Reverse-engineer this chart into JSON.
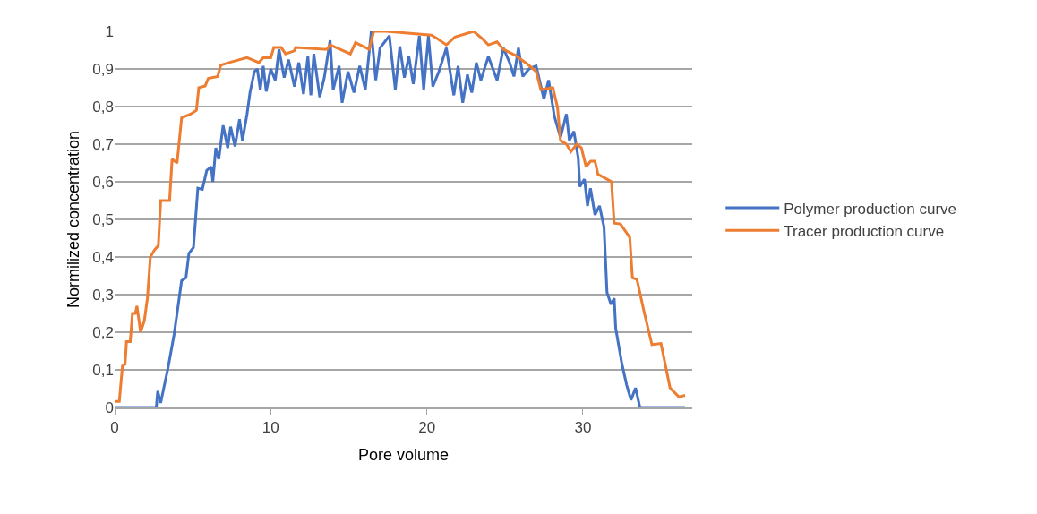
{
  "chart_data": {
    "type": "line",
    "xlabel": "Pore volume",
    "ylabel": "Normilized concentration",
    "xlim": [
      0,
      37
    ],
    "xticks": [
      0,
      10,
      20,
      30
    ],
    "ylim": [
      0,
      1
    ],
    "yticks": [
      0,
      {
        "value": 0.1,
        "label": "0,1"
      },
      {
        "value": 0.2,
        "label": "0,2"
      },
      {
        "value": 0.3,
        "label": "0,3"
      },
      {
        "value": 0.4,
        "label": "0,4"
      },
      {
        "value": 0.5,
        "label": "0,5"
      },
      {
        "value": 0.6,
        "label": "0,6"
      },
      {
        "value": 0.7,
        "label": "0,7"
      },
      {
        "value": 0.8,
        "label": "0,8"
      },
      {
        "value": 0.9,
        "label": "0,9"
      },
      1
    ],
    "grid": "y",
    "legend": "right",
    "marker": "none",
    "line_style": "solid",
    "series": [
      {
        "name": "Polymer production curve",
        "color": "#4472c4",
        "x": [
          0,
          2.67,
          2.76,
          2.95,
          3.14,
          3.43,
          3.81,
          4.29,
          4.57,
          4.76,
          5.05,
          5.33,
          5.62,
          5.9,
          6.19,
          6.29,
          6.48,
          6.67,
          6.95,
          7.24,
          7.43,
          7.71,
          8.0,
          8.19,
          8.48,
          8.67,
          8.95,
          9.14,
          9.33,
          9.52,
          9.71,
          10,
          10.29,
          10.53,
          10.86,
          11.14,
          11.52,
          11.8,
          12.1,
          12.38,
          12.57,
          12.76,
          13.14,
          13.43,
          13.8,
          14.0,
          14.38,
          14.57,
          14.95,
          15.33,
          15.7,
          16.06,
          16.44,
          16.73,
          17.0,
          17.6,
          17.98,
          18.27,
          18.56,
          18.85,
          19.13,
          19.52,
          19.8,
          20.1,
          20.38,
          20.77,
          21.25,
          21.73,
          22.0,
          22.3,
          22.6,
          22.88,
          23.17,
          23.46,
          23.94,
          24.5,
          24.9,
          25.3,
          25.58,
          25.87,
          26.15,
          26.54,
          27.0,
          27.5,
          27.8,
          28.17,
          28.56,
          28.94,
          29.13,
          29.42,
          29.7,
          29.8,
          30.1,
          30.29,
          30.48,
          30.77,
          31.06,
          31.35,
          31.54,
          31.8,
          32.0,
          32.1,
          32.5,
          32.8,
          33.08,
          33.37,
          33.65,
          36.54
        ],
        "values": [
          0,
          0,
          0.044,
          0.012,
          0.05,
          0.107,
          0.194,
          0.337,
          0.345,
          0.41,
          0.425,
          0.583,
          0.58,
          0.63,
          0.64,
          0.6,
          0.69,
          0.66,
          0.75,
          0.69,
          0.746,
          0.694,
          0.766,
          0.71,
          0.78,
          0.837,
          0.893,
          0.9,
          0.845,
          0.908,
          0.84,
          0.9,
          0.87,
          0.952,
          0.877,
          0.925,
          0.853,
          0.917,
          0.833,
          0.933,
          0.83,
          0.94,
          0.825,
          0.877,
          0.976,
          0.845,
          0.908,
          0.81,
          0.893,
          0.837,
          0.908,
          0.845,
          1.0,
          0.87,
          0.956,
          0.988,
          0.845,
          0.96,
          0.877,
          0.933,
          0.86,
          0.988,
          0.845,
          0.988,
          0.853,
          0.893,
          0.956,
          0.83,
          0.908,
          0.81,
          0.885,
          0.837,
          0.917,
          0.87,
          0.933,
          0.87,
          0.956,
          0.917,
          0.88,
          0.956,
          0.88,
          0.9,
          0.908,
          0.82,
          0.87,
          0.774,
          0.718,
          0.78,
          0.71,
          0.734,
          0.663,
          0.587,
          0.607,
          0.536,
          0.583,
          0.512,
          0.536,
          0.48,
          0.306,
          0.274,
          0.29,
          0.21,
          0.115,
          0.06,
          0.02,
          0.052,
          0,
          0
        ]
      },
      {
        "name": "Tracer production curve",
        "color": "#ed7d31",
        "x": [
          0,
          0.3,
          0.5,
          0.67,
          0.76,
          1.0,
          1.14,
          1.33,
          1.43,
          1.66,
          1.9,
          2.1,
          2.29,
          2.57,
          2.8,
          2.95,
          3.52,
          3.68,
          4.0,
          4.29,
          4.86,
          5.24,
          5.39,
          5.8,
          6.0,
          6.6,
          6.8,
          7.33,
          8.48,
          9.24,
          9.52,
          10,
          10.2,
          10.67,
          10.95,
          11.5,
          11.6,
          13.6,
          13.8,
          15.1,
          15.43,
          16.3,
          16.6,
          17.4,
          20.3,
          20.7,
          21.25,
          21.8,
          23.0,
          23.56,
          23.94,
          24.5,
          24.9,
          25.67,
          26.44,
          27.0,
          27.3,
          28.07,
          28.37,
          28.56,
          28.94,
          29.23,
          29.6,
          29.9,
          30.2,
          30.5,
          30.77,
          30.96,
          31.54,
          31.83,
          32.0,
          32.4,
          33.0,
          33.17,
          33.46,
          33.94,
          34.42,
          35.0,
          35.58,
          36.15,
          36.54
        ],
        "values": [
          0.016,
          0.016,
          0.11,
          0.115,
          0.175,
          0.175,
          0.25,
          0.25,
          0.27,
          0.2,
          0.23,
          0.29,
          0.4,
          0.42,
          0.43,
          0.55,
          0.55,
          0.66,
          0.65,
          0.77,
          0.78,
          0.79,
          0.85,
          0.855,
          0.875,
          0.88,
          0.91,
          0.917,
          0.93,
          0.917,
          0.93,
          0.93,
          0.957,
          0.957,
          0.94,
          0.948,
          0.957,
          0.952,
          0.964,
          0.94,
          0.97,
          0.952,
          1.0,
          1.0,
          0.99,
          0.98,
          0.964,
          0.985,
          1.0,
          0.98,
          0.964,
          0.972,
          0.952,
          0.936,
          0.913,
          0.893,
          0.845,
          0.85,
          0.798,
          0.71,
          0.7,
          0.68,
          0.7,
          0.69,
          0.64,
          0.655,
          0.655,
          0.62,
          0.607,
          0.6,
          0.49,
          0.488,
          0.452,
          0.345,
          0.34,
          0.25,
          0.167,
          0.17,
          0.052,
          0.028,
          0.032
        ]
      }
    ]
  }
}
